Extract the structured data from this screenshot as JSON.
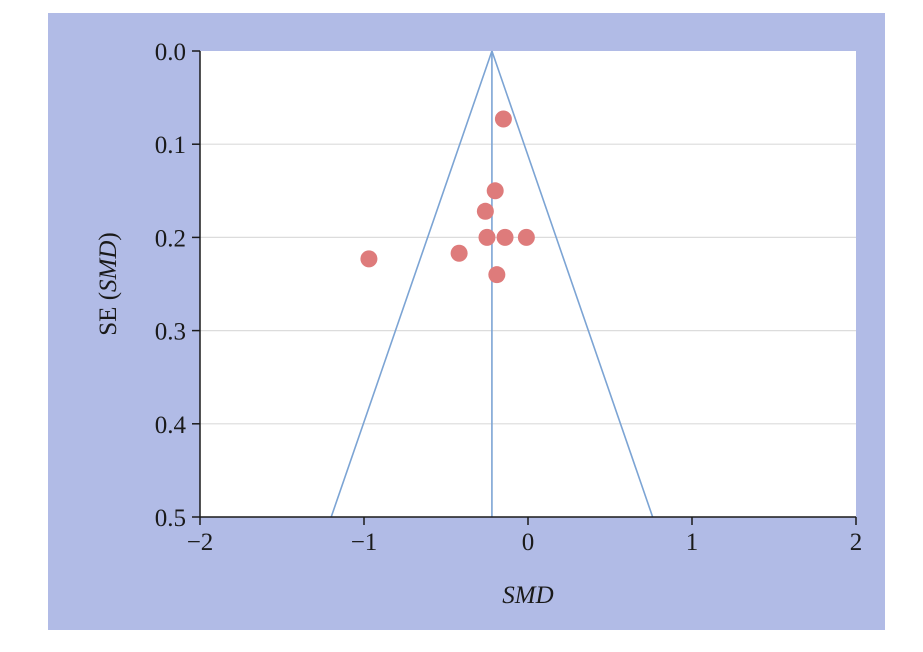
{
  "chart_data": {
    "type": "scatter",
    "title": "",
    "xlabel": "SMD",
    "ylabel_prefix": "SE (",
    "ylabel_italic": "SMD",
    "ylabel_suffix": ")",
    "xlim": [
      -2,
      2
    ],
    "ylim": [
      0,
      0.5
    ],
    "y_inverted": true,
    "x_ticks": [
      -2,
      -1,
      0,
      1,
      2
    ],
    "x_tick_labels": [
      "−2",
      "−1",
      "0",
      "1",
      "2"
    ],
    "y_ticks": [
      0,
      0.1,
      0.2,
      0.3,
      0.4,
      0.5
    ],
    "y_tick_labels": [
      "0.0",
      "0.1",
      "0.2",
      "0.3",
      "0.4",
      "0.5"
    ],
    "grid": "horizontal",
    "pooled_estimate": -0.22,
    "funnel_z": 1.96,
    "points": [
      {
        "x": -0.15,
        "y": 0.073
      },
      {
        "x": -0.2,
        "y": 0.15
      },
      {
        "x": -0.26,
        "y": 0.172
      },
      {
        "x": -0.25,
        "y": 0.2
      },
      {
        "x": -0.14,
        "y": 0.2
      },
      {
        "x": -0.01,
        "y": 0.2
      },
      {
        "x": -0.42,
        "y": 0.217
      },
      {
        "x": -0.97,
        "y": 0.223
      },
      {
        "x": -0.19,
        "y": 0.24
      }
    ],
    "colors": {
      "background": "#b1bbe6",
      "plot_area": "#ffffff",
      "points": "#de7b7b",
      "funnel_lines": "#7ca4d4",
      "grid": "#dcdcdc",
      "axis": "#1a1a1a"
    }
  }
}
